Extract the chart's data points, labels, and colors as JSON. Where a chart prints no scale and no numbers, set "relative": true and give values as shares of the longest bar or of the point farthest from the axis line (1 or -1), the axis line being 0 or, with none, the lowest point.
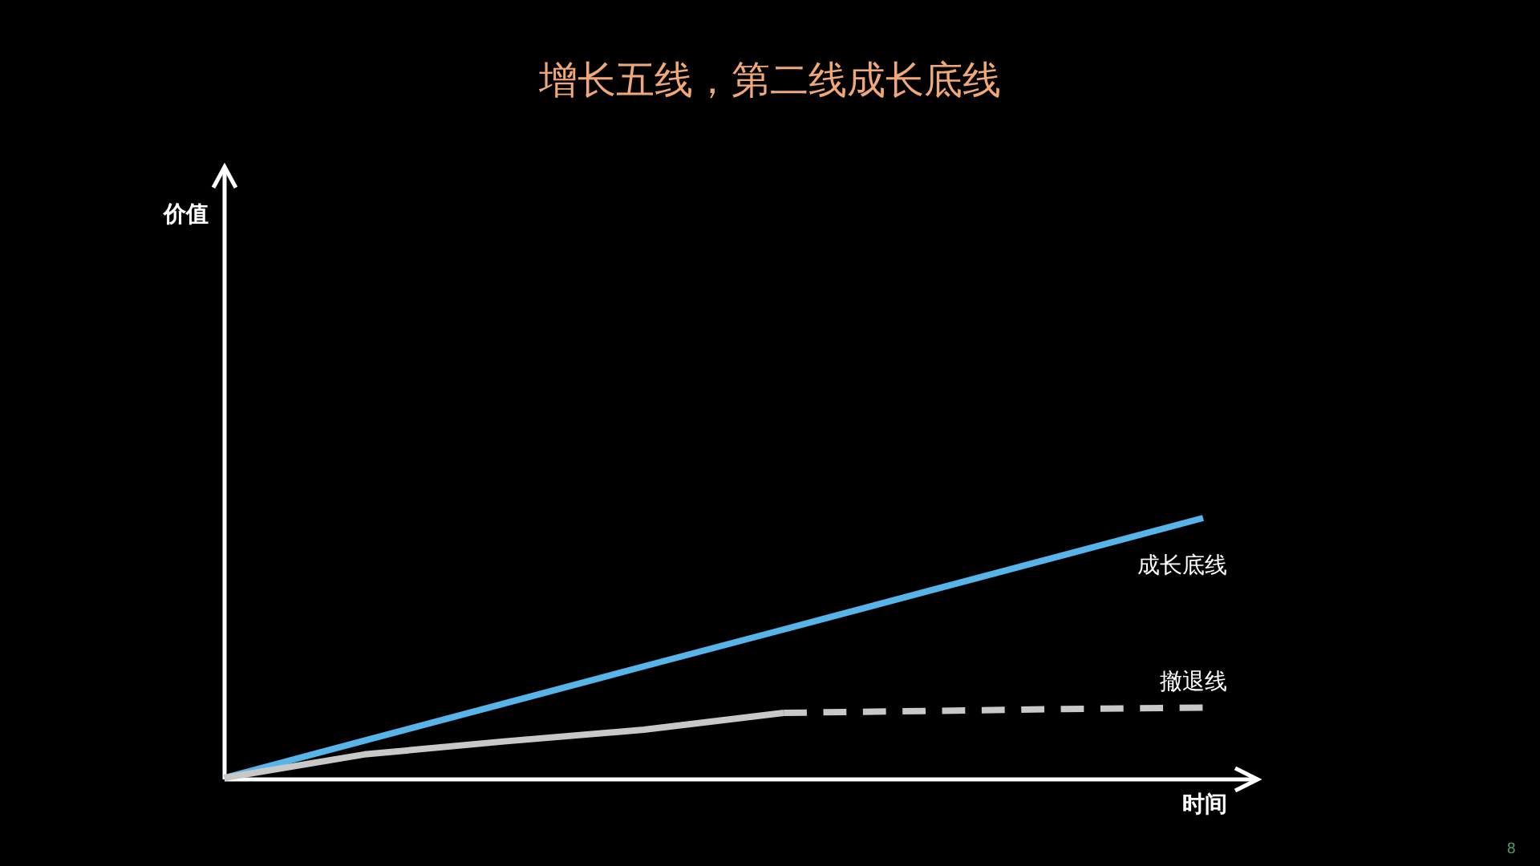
{
  "chart_data": {
    "type": "line",
    "title": "增长五线，第二线成长底线",
    "xlabel": "时间",
    "relative": true,
    "legend": false,
    "grid": false,
    "categories": [
      null,
      null,
      null,
      null,
      null,
      null,
      null,
      null
    ],
    "series": [
      {
        "name": "成长底线",
        "color": "#56b4e9",
        "values": [
          0,
          0.143,
          0.286,
          0.429,
          0.571,
          0.714,
          0.857,
          1
        ]
      },
      {
        "color": "#c8c8c8",
        "line_style": "solid",
        "values": [
          0,
          0.09,
          0.14,
          0.185,
          0.25,
          null,
          null,
          null
        ]
      },
      {
        "name": "撤退线",
        "color": "#c8c8c8",
        "line_style": "dashed",
        "values": [
          null,
          null,
          null,
          null,
          0.25,
          0.257,
          0.265,
          0.27
        ]
      }
    ],
    "annotations": [
      "价值",
      "8"
    ]
  }
}
